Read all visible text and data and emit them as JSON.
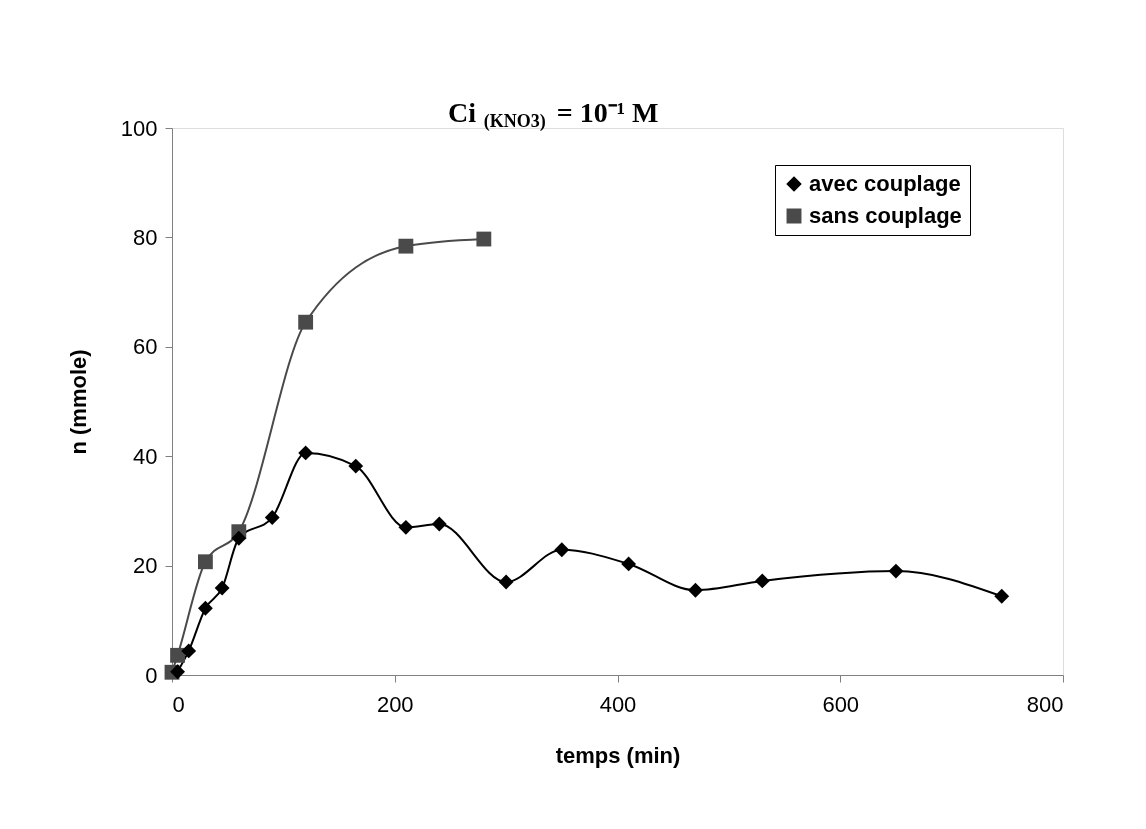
{
  "chart_data": {
    "type": "line",
    "title": "Ci$_{(KNO3)}$ = 10⁻¹ M",
    "xlabel": "temps (min)",
    "ylabel": "n (mmole)",
    "xlim": [
      0,
      800
    ],
    "xticks": [
      0,
      200,
      400,
      600,
      800
    ],
    "ylim": [
      0,
      100
    ],
    "yticks": [
      0,
      20,
      40,
      60,
      80,
      100
    ],
    "grid": false,
    "legend": "top right",
    "line_style": "solid",
    "series": [
      {
        "name": "avec couplage",
        "color": "#000000",
        "marker": "diamond",
        "x": [
          5,
          15,
          30,
          45,
          60,
          90,
          120,
          165,
          210,
          240,
          300,
          350,
          410,
          470,
          530,
          650,
          745
        ],
        "values": [
          0.6,
          4.4,
          12.2,
          15.9,
          25,
          28.8,
          40.6,
          38.2,
          27,
          27.6,
          17,
          22.9,
          20.3,
          15.5,
          17.2,
          19,
          14.4
        ]
      },
      {
        "name": "sans couplage",
        "color": "#4a4a4a",
        "marker": "square",
        "x": [
          0,
          5,
          30,
          60,
          120,
          210,
          280
        ],
        "values": [
          0.5,
          3.6,
          20.7,
          26.2,
          64.5,
          78.4,
          79.7
        ]
      }
    ]
  }
}
